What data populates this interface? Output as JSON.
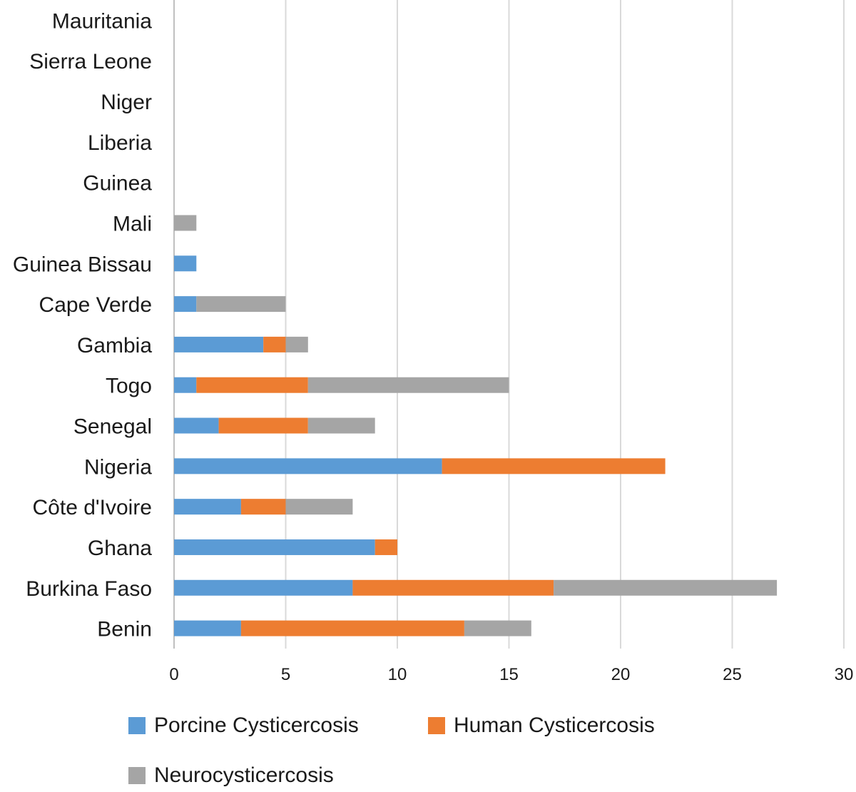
{
  "chart_data": {
    "type": "bar",
    "orientation": "horizontal",
    "stacked": true,
    "categories": [
      "Mauritania",
      "Sierra Leone",
      "Niger",
      "Liberia",
      "Guinea",
      "Mali",
      "Guinea Bissau",
      "Cape Verde",
      "Gambia",
      "Togo",
      "Senegal",
      "Nigeria",
      "Côte d'Ivoire",
      "Ghana",
      "Burkina Faso",
      "Benin"
    ],
    "series": [
      {
        "name": "Porcine Cysticercosis",
        "color": "#5b9bd5",
        "values": [
          0,
          0,
          0,
          0,
          0,
          0,
          1,
          1,
          4,
          1,
          2,
          12,
          3,
          9,
          8,
          3
        ]
      },
      {
        "name": "Human Cysticercosis",
        "color": "#ed7d31",
        "values": [
          0,
          0,
          0,
          0,
          0,
          0,
          0,
          0,
          1,
          5,
          4,
          10,
          2,
          1,
          9,
          10
        ]
      },
      {
        "name": "Neurocysticercosis",
        "color": "#a5a5a5",
        "values": [
          0,
          0,
          0,
          0,
          0,
          1,
          0,
          4,
          1,
          9,
          3,
          0,
          3,
          0,
          10,
          3
        ]
      }
    ],
    "xlim": [
      0,
      30
    ],
    "xticks": [
      "0",
      "5",
      "10",
      "15",
      "20",
      "25",
      "30"
    ],
    "grid": "vertical",
    "legend_position": "bottom"
  }
}
